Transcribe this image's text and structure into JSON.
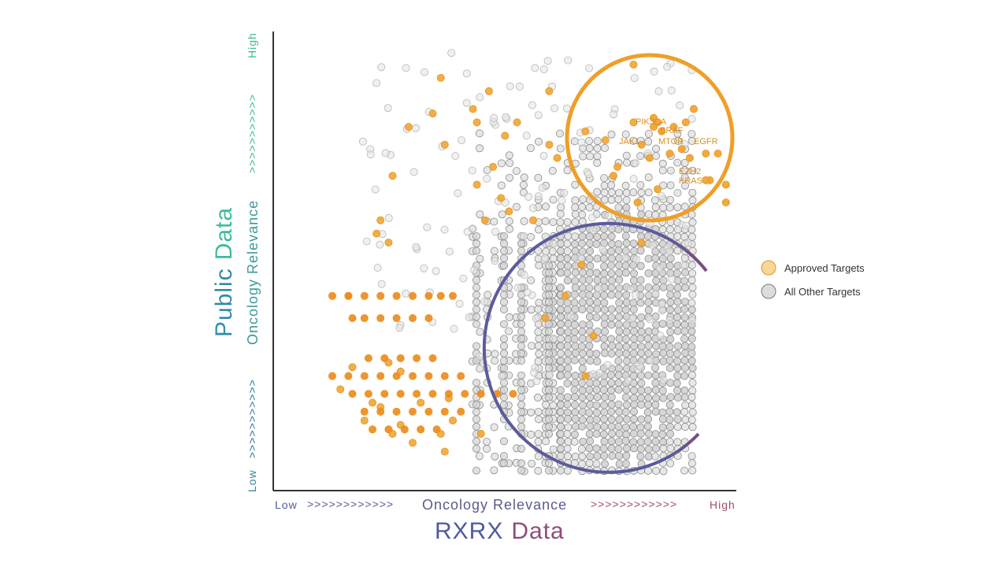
{
  "colors": {
    "approved_fill": "#f0a535",
    "approved_fill_strong": "#ec8a1c",
    "approved_stroke": "#e6951f",
    "other_fill": "#d4d4d4",
    "other_stroke": "#8c8c8c",
    "top_circle": "#ef9f28",
    "c_arc": "#5b5b9c",
    "c_arc_end": "#7a4d7c",
    "axis": "#333333",
    "label_target": "#d9901f",
    "teal": "#3dbb9a",
    "blue_teal": "#2f8da6",
    "blue": "#4f5aa0",
    "purple": "#7a4d7c",
    "pink": "#a44c73",
    "grey_text": "#555555"
  },
  "chart_data": {
    "type": "scatter",
    "xaxis": {
      "low": "Low",
      "arrows_left": ">>>>>>>>>>>>",
      "middle": "Oncology Relevance",
      "arrows_right": ">>>>>>>>>>>>",
      "high": "High",
      "title_part1": "RXRX",
      "title_part2": "Data"
    },
    "yaxis": {
      "low": "Low",
      "arrows_bottom": ">>>>>>>>>>>",
      "middle": "Oncology Relevance",
      "arrows_top": ">>>>>>>>>>>",
      "high": "High",
      "title_part1": "Public",
      "title_part2": "Data"
    },
    "legend": {
      "position": "right",
      "items": [
        {
          "label": "Approved Targets",
          "kind": "approved"
        },
        {
          "label": "All Other Targets",
          "kind": "other"
        }
      ]
    },
    "approved_targets": [
      [
        75,
        3
      ],
      [
        54,
        9
      ],
      [
        39,
        9
      ],
      [
        25,
        14
      ],
      [
        19,
        17
      ],
      [
        27,
        6
      ],
      [
        36,
        16
      ],
      [
        35,
        13
      ],
      [
        28,
        21
      ],
      [
        15,
        28
      ],
      [
        12,
        38
      ],
      [
        46,
        16
      ],
      [
        63,
        18
      ],
      [
        54,
        21
      ],
      [
        68,
        20
      ],
      [
        75,
        16
      ],
      [
        70,
        28
      ],
      [
        42,
        33
      ],
      [
        36,
        30
      ],
      [
        43,
        19
      ],
      [
        56,
        24
      ],
      [
        40,
        26
      ],
      [
        44,
        36
      ],
      [
        38,
        38
      ],
      [
        50,
        38
      ],
      [
        71,
        26
      ],
      [
        77,
        43
      ],
      [
        62,
        48
      ],
      [
        58,
        55
      ],
      [
        53,
        60
      ],
      [
        65,
        64
      ],
      [
        63,
        73
      ],
      [
        11,
        41
      ],
      [
        14,
        43
      ],
      [
        4,
        55
      ],
      [
        2,
        76
      ],
      [
        10,
        79
      ],
      [
        12,
        80
      ],
      [
        17,
        84
      ],
      [
        20,
        88
      ],
      [
        22,
        79
      ],
      [
        29,
        78
      ],
      [
        30,
        83
      ],
      [
        27,
        86
      ],
      [
        15,
        86
      ],
      [
        28,
        90
      ],
      [
        37,
        86
      ],
      [
        14,
        70
      ],
      [
        17,
        72
      ],
      [
        8,
        83
      ],
      [
        5,
        71
      ]
    ],
    "approved_rows": [
      {
        "y": 55,
        "xs": [
          0,
          4,
          8,
          12,
          16,
          20,
          24,
          27,
          30
        ]
      },
      {
        "y": 60,
        "xs": [
          5,
          8,
          12,
          16,
          20,
          24
        ]
      },
      {
        "y": 69,
        "xs": [
          9,
          13,
          17,
          21,
          25
        ]
      },
      {
        "y": 73,
        "xs": [
          0,
          4,
          8,
          12,
          16,
          20,
          24,
          28,
          32
        ]
      },
      {
        "y": 77,
        "xs": [
          5,
          9,
          13,
          17,
          21,
          25,
          29,
          33,
          37,
          41,
          45
        ]
      },
      {
        "y": 81,
        "xs": [
          8,
          12,
          16,
          20,
          24,
          28,
          32
        ]
      },
      {
        "y": 85,
        "xs": [
          10,
          14,
          18,
          22,
          26
        ]
      }
    ],
    "approved_cluster": [
      [
        77,
        21
      ],
      [
        80,
        17
      ],
      [
        80,
        15
      ],
      [
        82,
        18
      ],
      [
        85,
        17
      ],
      [
        81,
        16
      ],
      [
        88,
        16
      ],
      [
        90,
        13
      ],
      [
        79,
        24
      ],
      [
        84,
        23
      ],
      [
        89,
        24
      ],
      [
        87,
        22
      ],
      [
        93,
        23
      ],
      [
        96,
        23
      ],
      [
        94,
        29
      ],
      [
        98,
        30
      ],
      [
        98,
        34
      ],
      [
        93,
        29
      ],
      [
        76,
        34
      ],
      [
        81,
        31
      ]
    ],
    "other_targets_region": "dense lower-right field, sparse upper-left spread",
    "annotations": [
      {
        "label": "PIK3CA",
        "x": 86,
        "y": 13
      },
      {
        "label": "BRAF",
        "x": 91,
        "y": 15
      },
      {
        "label": "JAK1",
        "x": 81,
        "y": 17
      },
      {
        "label": "MTOR",
        "x": 90,
        "y": 17
      },
      {
        "label": "EGFR",
        "x": 97,
        "y": 17
      },
      {
        "label": "EZH2",
        "x": 96,
        "y": 23
      },
      {
        "label": "KRAS",
        "x": 96,
        "y": 25
      }
    ]
  }
}
